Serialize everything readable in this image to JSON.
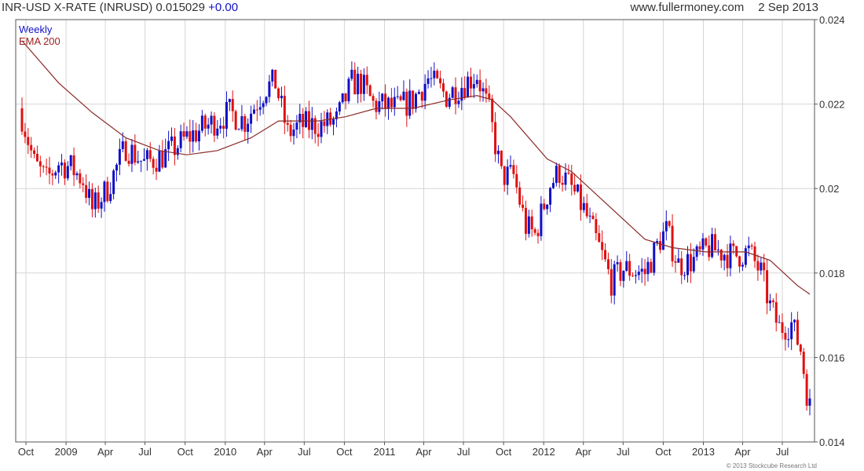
{
  "header": {
    "symbol": "INR-USD X-RATE (INRUSD)",
    "last": "0.015029",
    "change": "+0.00",
    "site": "www.fullermoney.com",
    "date": "2 Sep 2013"
  },
  "legend": {
    "period": "Weekly",
    "indicator": "EMA 200"
  },
  "copyright": "© 2013 Stockcube Research Ltd",
  "colors": {
    "up": "#1010c8",
    "down": "#e01010",
    "ema": "#8b2a2a",
    "grid": "#d6d6d6"
  },
  "chart_data": {
    "type": "candlestick",
    "title": "INR-USD X-RATE (INRUSD)",
    "interval": "Weekly",
    "ylim": [
      0.014,
      0.024
    ],
    "y_ticks": [
      0.024,
      0.022,
      0.02,
      0.018,
      0.016,
      0.014
    ],
    "y_tick_labels": [
      "0.024",
      "0.022",
      "0.02",
      "0.018",
      "0.016",
      "0.014"
    ],
    "x_labels": [
      "Oct",
      "2009",
      "Apr",
      "Jul",
      "Oct",
      "2010",
      "Apr",
      "Jul",
      "Oct",
      "2011",
      "Apr",
      "Jul",
      "Oct",
      "2012",
      "Apr",
      "Jul",
      "Oct",
      "2013",
      "Apr",
      "Jul"
    ],
    "x_label_dates": [
      "2008-10-01",
      "2009-01-01",
      "2009-04-01",
      "2009-07-01",
      "2009-10-01",
      "2010-01-01",
      "2010-04-01",
      "2010-07-01",
      "2010-10-01",
      "2011-01-01",
      "2011-04-01",
      "2011-07-01",
      "2011-10-01",
      "2012-01-01",
      "2012-04-01",
      "2012-07-01",
      "2012-10-01",
      "2013-01-01",
      "2013-04-01",
      "2013-07-01"
    ],
    "x_range": [
      "2008-09-22",
      "2013-09-02"
    ],
    "grid": true,
    "close_keypoints": [
      [
        "2008-09-22",
        0.0217
      ],
      [
        "2008-10-20",
        0.0206
      ],
      [
        "2008-11-17",
        0.0202
      ],
      [
        "2008-12-15",
        0.0206
      ],
      [
        "2009-01-12",
        0.0205
      ],
      [
        "2009-02-09",
        0.0202
      ],
      [
        "2009-03-02",
        0.0195
      ],
      [
        "2009-04-06",
        0.02
      ],
      [
        "2009-05-18",
        0.021
      ],
      [
        "2009-06-29",
        0.0206
      ],
      [
        "2009-08-17",
        0.0208
      ],
      [
        "2009-10-05",
        0.0212
      ],
      [
        "2009-11-23",
        0.0215
      ],
      [
        "2010-01-11",
        0.0218
      ],
      [
        "2010-02-15",
        0.0216
      ],
      [
        "2010-04-05",
        0.0224
      ],
      [
        "2010-04-26",
        0.0225
      ],
      [
        "2010-05-24",
        0.0213
      ],
      [
        "2010-06-21",
        0.0215
      ],
      [
        "2010-08-09",
        0.0215
      ],
      [
        "2010-09-13",
        0.0216
      ],
      [
        "2010-10-18",
        0.0225
      ],
      [
        "2010-11-08",
        0.0225
      ],
      [
        "2010-12-06",
        0.022
      ],
      [
        "2011-01-31",
        0.0219
      ],
      [
        "2011-03-07",
        0.0221
      ],
      [
        "2011-04-11",
        0.0226
      ],
      [
        "2011-05-23",
        0.0222
      ],
      [
        "2011-07-18",
        0.0226
      ],
      [
        "2011-08-01",
        0.0227
      ],
      [
        "2011-08-29",
        0.0218
      ],
      [
        "2011-09-26",
        0.0203
      ],
      [
        "2011-10-24",
        0.0203
      ],
      [
        "2011-11-21",
        0.0191
      ],
      [
        "2011-12-12",
        0.0189
      ],
      [
        "2012-01-16",
        0.0201
      ],
      [
        "2012-02-06",
        0.0204
      ],
      [
        "2012-03-05",
        0.02
      ],
      [
        "2012-04-02",
        0.0195
      ],
      [
        "2012-05-07",
        0.0186
      ],
      [
        "2012-06-04",
        0.0178
      ],
      [
        "2012-07-02",
        0.0181
      ],
      [
        "2012-08-20",
        0.018
      ],
      [
        "2012-09-24",
        0.0188
      ],
      [
        "2012-10-08",
        0.019
      ],
      [
        "2012-11-05",
        0.0182
      ],
      [
        "2012-12-10",
        0.0183
      ],
      [
        "2013-01-14",
        0.0186
      ],
      [
        "2013-02-11",
        0.0185
      ],
      [
        "2013-03-11",
        0.0184
      ],
      [
        "2013-04-15",
        0.0185
      ],
      [
        "2013-05-13",
        0.018
      ],
      [
        "2013-06-03",
        0.0172
      ],
      [
        "2013-06-24",
        0.0167
      ],
      [
        "2013-07-22",
        0.0168
      ],
      [
        "2013-08-12",
        0.0162
      ],
      [
        "2013-08-26",
        0.0152
      ],
      [
        "2013-09-02",
        0.01503
      ]
    ],
    "ema200_keypoints": [
      [
        "2008-09-22",
        0.0235
      ],
      [
        "2008-12-15",
        0.0225
      ],
      [
        "2009-03-02",
        0.0218
      ],
      [
        "2009-05-18",
        0.0212
      ],
      [
        "2009-08-03",
        0.0209
      ],
      [
        "2009-10-05",
        0.0208
      ],
      [
        "2009-12-14",
        0.0209
      ],
      [
        "2010-03-01",
        0.0212
      ],
      [
        "2010-05-03",
        0.0216
      ],
      [
        "2010-08-02",
        0.0216
      ],
      [
        "2010-10-04",
        0.0217
      ],
      [
        "2010-12-13",
        0.0219
      ],
      [
        "2011-03-07",
        0.0219
      ],
      [
        "2011-05-30",
        0.0221
      ],
      [
        "2011-08-01",
        0.0222
      ],
      [
        "2011-09-05",
        0.0221
      ],
      [
        "2011-10-17",
        0.0217
      ],
      [
        "2012-01-09",
        0.0207
      ],
      [
        "2012-03-05",
        0.0204
      ],
      [
        "2012-05-28",
        0.0196
      ],
      [
        "2012-08-20",
        0.0188
      ],
      [
        "2012-10-22",
        0.0186
      ],
      [
        "2013-01-07",
        0.0185
      ],
      [
        "2013-04-08",
        0.0185
      ],
      [
        "2013-06-03",
        0.0183
      ],
      [
        "2013-08-05",
        0.0177
      ],
      [
        "2013-09-02",
        0.0175
      ]
    ]
  }
}
